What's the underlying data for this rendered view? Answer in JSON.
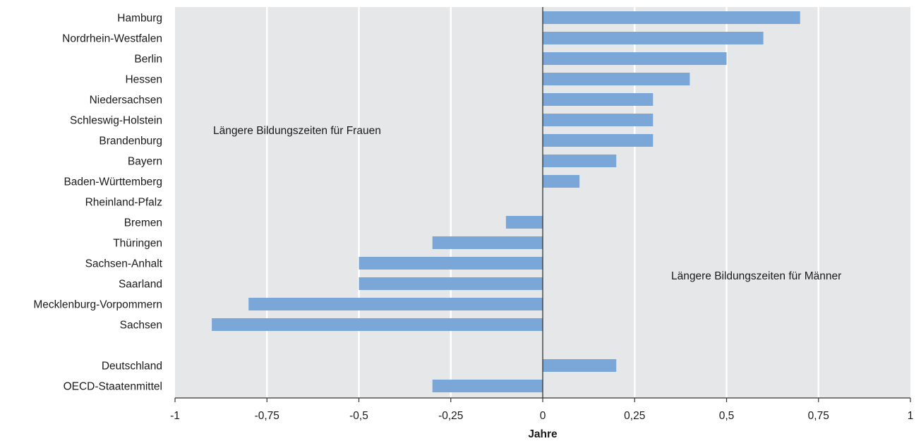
{
  "chart_data": {
    "type": "bar",
    "orientation": "horizontal",
    "categories": [
      "Hamburg",
      "Nordrhein-Westfalen",
      "Berlin",
      "Hessen",
      "Niedersachsen",
      "Schleswig-Holstein",
      "Brandenburg",
      "Bayern",
      "Baden-Württemberg",
      "Rheinland-Pfalz",
      "Bremen",
      "Thüringen",
      "Sachsen-Anhalt",
      "Saarland",
      "Mecklenburg-Vorpommern",
      "Sachsen",
      "",
      "Deutschland",
      "OECD-Staatenmittel"
    ],
    "values": [
      0.7,
      0.6,
      0.5,
      0.4,
      0.3,
      0.3,
      0.3,
      0.2,
      0.1,
      0.0,
      -0.1,
      -0.3,
      -0.5,
      -0.5,
      -0.8,
      -0.9,
      null,
      0.2,
      -0.3
    ],
    "xlabel": "Jahre",
    "xlim": [
      -1,
      1
    ],
    "xticks": [
      -1,
      -0.75,
      -0.5,
      -0.25,
      0,
      0.25,
      0.5,
      0.75,
      1
    ],
    "xtick_labels": [
      "-1",
      "-0,75",
      "-0,5",
      "-0,25",
      "0",
      "0,25",
      "0,5",
      "0,75",
      "1"
    ],
    "annotations": {
      "women": "Längere Bildungszeiten für Frauen",
      "men": "Längere Bildungszeiten für Männer"
    },
    "grid": true,
    "colors": {
      "bar": "#7ba6d8",
      "plot_background": "#e6e7e8",
      "grid": "#ffffff",
      "zero_line": "#333333"
    }
  }
}
